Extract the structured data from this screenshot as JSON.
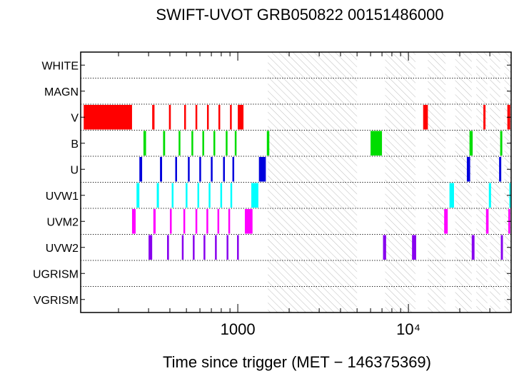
{
  "chart_data": {
    "type": "timeline",
    "title": "SWIFT-UVOT GRB050822 00151486000",
    "xlabel": "Time since trigger (MET − 146375369)",
    "ylabel": "",
    "xscale": "log",
    "xlim": [
      120,
      40000
    ],
    "grid": "dotted rows",
    "x_tick_labels": [
      {
        "value": 1000,
        "label": "1000"
      },
      {
        "value": 10000,
        "label": "10⁴"
      }
    ],
    "rows": [
      "WHITE",
      "MAGN",
      "V",
      "B",
      "U",
      "UVW1",
      "UVM2",
      "UVW2",
      "UGRISM",
      "VGRISM"
    ],
    "colors": {
      "V": "#ff0000",
      "B": "#00dd00",
      "U": "#0000dd",
      "UVW1": "#00ffff",
      "UVM2": "#ff00ff",
      "UVW2": "#8800ee"
    },
    "hatch_color": "#bbbbbb",
    "hatched_intervals": [
      [
        1500,
        5000
      ],
      [
        7300,
        11000
      ],
      [
        13000,
        16500
      ],
      [
        18800,
        23500
      ],
      [
        25000,
        29000
      ],
      [
        30000,
        34500
      ],
      [
        36500,
        40000
      ]
    ],
    "exposures": {
      "V": [
        [
          125,
          240
        ],
        [
          315,
          325
        ],
        [
          395,
          405
        ],
        [
          485,
          495
        ],
        [
          565,
          575
        ],
        [
          660,
          670
        ],
        [
          770,
          780
        ],
        [
          900,
          910
        ],
        [
          1000,
          1080
        ],
        [
          12200,
          13000
        ],
        [
          27500,
          28300
        ],
        [
          38000,
          39500
        ]
      ],
      "B": [
        [
          280,
          290
        ],
        [
          365,
          375
        ],
        [
          450,
          460
        ],
        [
          535,
          545
        ],
        [
          620,
          630
        ],
        [
          720,
          730
        ],
        [
          850,
          860
        ],
        [
          960,
          970
        ],
        [
          1480,
          1530
        ],
        [
          6000,
          7000
        ],
        [
          22800,
          23800
        ],
        [
          34500,
          35500
        ]
      ],
      "U": [
        [
          265,
          275
        ],
        [
          350,
          360
        ],
        [
          430,
          440
        ],
        [
          510,
          520
        ],
        [
          595,
          605
        ],
        [
          695,
          705
        ],
        [
          820,
          830
        ],
        [
          930,
          940
        ],
        [
          1330,
          1460
        ],
        [
          22000,
          23000
        ],
        [
          34000,
          35000
        ]
      ],
      "UVW1": [
        [
          255,
          265
        ],
        [
          335,
          345
        ],
        [
          410,
          420
        ],
        [
          495,
          505
        ],
        [
          580,
          590
        ],
        [
          675,
          685
        ],
        [
          790,
          800
        ],
        [
          905,
          915
        ],
        [
          1200,
          1320
        ],
        [
          17400,
          18500
        ],
        [
          29600,
          30500
        ],
        [
          39300,
          40000
        ]
      ],
      "UVM2": [
        [
          240,
          252
        ],
        [
          320,
          330
        ],
        [
          400,
          410
        ],
        [
          480,
          490
        ],
        [
          565,
          575
        ],
        [
          655,
          665
        ],
        [
          760,
          770
        ],
        [
          880,
          890
        ],
        [
          1100,
          1220
        ],
        [
          16200,
          17000
        ],
        [
          28500,
          29500
        ],
        [
          38500,
          39500
        ]
      ],
      "UVW2": [
        [
          300,
          315
        ],
        [
          385,
          395
        ],
        [
          470,
          480
        ],
        [
          545,
          555
        ],
        [
          630,
          640
        ],
        [
          735,
          745
        ],
        [
          860,
          870
        ],
        [
          990,
          1000
        ],
        [
          7100,
          7400
        ],
        [
          10500,
          11100
        ],
        [
          23500,
          24400
        ],
        [
          34800,
          35800
        ]
      ],
      "WHITE": [],
      "MAGN": [],
      "UGRISM": [],
      "VGRISM": []
    }
  }
}
